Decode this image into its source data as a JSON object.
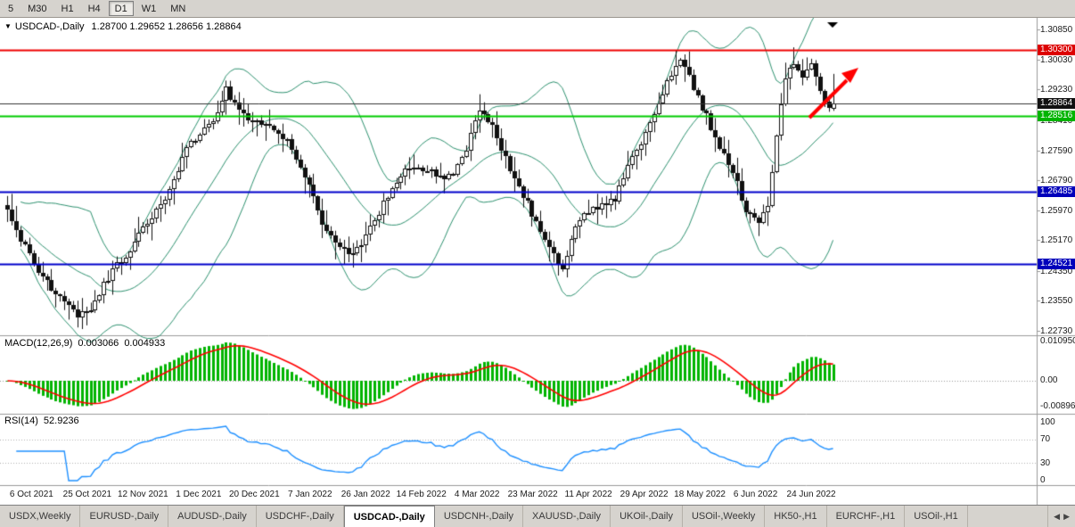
{
  "toolbar": {
    "timeframes": [
      "5",
      "M30",
      "H1",
      "H4",
      "D1",
      "W1",
      "MN"
    ],
    "active_timeframe": "D1"
  },
  "chart": {
    "expand_icon": "▼",
    "shift_marker": "▼",
    "symbol_label": "USDCAD-,Daily",
    "ohlc": "1.28700 1.29652 1.28656 1.28864",
    "y_axis": {
      "ticks": [
        "1.30850",
        "1.30030",
        "1.29230",
        "1.28410",
        "1.27590",
        "1.26790",
        "1.25970",
        "1.25170",
        "1.24350",
        "1.23550",
        "1.22730"
      ]
    },
    "x_axis": {
      "labels": [
        "6 Oct 2021",
        "25 Oct 2021",
        "12 Nov 2021",
        "1 Dec 2021",
        "20 Dec 2021",
        "7 Jan 2022",
        "26 Jan 2022",
        "14 Feb 2022",
        "4 Mar 2022",
        "23 Mar 2022",
        "11 Apr 2022",
        "29 Apr 2022",
        "18 May 2022",
        "6 Jun 2022",
        "24 Jun 2022"
      ]
    },
    "price_lines": [
      {
        "label": "1.30300",
        "price": 1.303,
        "color": "#ee0000",
        "badge": "#dd0000",
        "width": 2
      },
      {
        "label": "1.28864",
        "price": 1.28864,
        "color": "#333333",
        "badge": "#111111",
        "width": 1
      },
      {
        "label": "1.28516",
        "price": 1.28516,
        "color": "#00cc00",
        "badge": "#00b400",
        "width": 2
      },
      {
        "label": "1.26485",
        "price": 1.26485,
        "color": "#0000cc",
        "badge": "#0000bb",
        "width": 2
      },
      {
        "label": "1.24521",
        "price": 1.24521,
        "color": "#0000cc",
        "badge": "#0000bb",
        "width": 2
      }
    ],
    "trend_arrow_color": "#ff0000"
  },
  "chart_data": {
    "type": "candlestick",
    "title": "USDCAD-,Daily",
    "bars": 190,
    "y_range": [
      1.2261,
      1.3112
    ],
    "last_bar": {
      "open": 1.287,
      "high": 1.29652,
      "low": 1.28656,
      "close": 1.28864
    },
    "price_anchors": [
      [
        0,
        1.26
      ],
      [
        3,
        1.252
      ],
      [
        6,
        1.245
      ],
      [
        9,
        1.24
      ],
      [
        12,
        1.237
      ],
      [
        16,
        1.231
      ],
      [
        19,
        1.233
      ],
      [
        22,
        1.2395
      ],
      [
        25,
        1.245
      ],
      [
        28,
        1.249
      ],
      [
        31,
        1.255
      ],
      [
        35,
        1.261
      ],
      [
        38,
        1.2685
      ],
      [
        41,
        1.277
      ],
      [
        44,
        1.2805
      ],
      [
        47,
        1.284
      ],
      [
        50,
        1.292
      ],
      [
        53,
        1.287
      ],
      [
        56,
        1.283
      ],
      [
        59,
        1.284
      ],
      [
        62,
        1.2805
      ],
      [
        65,
        1.277
      ],
      [
        68,
        1.269
      ],
      [
        72,
        1.256
      ],
      [
        75,
        1.252
      ],
      [
        78,
        1.248
      ],
      [
        81,
        1.25
      ],
      [
        84,
        1.2575
      ],
      [
        87,
        1.2635
      ],
      [
        90,
        1.2695
      ],
      [
        93,
        1.272
      ],
      [
        96,
        1.2705
      ],
      [
        99,
        1.2685
      ],
      [
        102,
        1.2705
      ],
      [
        105,
        1.2765
      ],
      [
        108,
        1.287
      ],
      [
        111,
        1.283
      ],
      [
        113,
        1.2765
      ],
      [
        116,
        1.2685
      ],
      [
        119,
        1.2615
      ],
      [
        122,
        1.2535
      ],
      [
        125,
        1.2485
      ],
      [
        127,
        1.244
      ],
      [
        130,
        1.2555
      ],
      [
        133,
        1.2595
      ],
      [
        136,
        1.2615
      ],
      [
        139,
        1.2625
      ],
      [
        142,
        1.272
      ],
      [
        145,
        1.278
      ],
      [
        148,
        1.285
      ],
      [
        151,
        1.2945
      ],
      [
        154,
        1.301
      ],
      [
        157,
        1.2925
      ],
      [
        160,
        1.285
      ],
      [
        163,
        1.2765
      ],
      [
        166,
        1.2705
      ],
      [
        169,
        1.2595
      ],
      [
        172,
        1.256
      ],
      [
        174,
        1.2615
      ],
      [
        176,
        1.2805
      ],
      [
        178,
        1.2945
      ],
      [
        180,
        1.3
      ],
      [
        182,
        1.295
      ],
      [
        184,
        1.2985
      ],
      [
        186,
        1.2915
      ],
      [
        188,
        1.2875
      ],
      [
        189,
        1.2886
      ]
    ],
    "indicators": {
      "bollinger": {
        "name": "Bollinger Bands",
        "period": 20,
        "deviation": 2,
        "color": "#2e9270"
      },
      "macd": {
        "label": "MACD(12,26,9)",
        "value_main": "0.003066",
        "value_signal": "0.004933",
        "histogram_color": "#00b400",
        "signal_color": "#ff0000",
        "axis_labels": [
          "0.010950",
          "0.00",
          "-0.008960"
        ]
      },
      "rsi": {
        "label": "RSI(14)",
        "value": "52.9236",
        "color": "#1e90ff",
        "axis_labels": [
          "100",
          "70",
          "30",
          "0"
        ],
        "levels": [
          70,
          30
        ]
      }
    }
  },
  "tabbar": {
    "scroll_left_icon": "◀",
    "scroll_right_icon": "▶",
    "tabs": [
      {
        "label": "USDX,Weekly",
        "active": false
      },
      {
        "label": "EURUSD-,Daily",
        "active": false
      },
      {
        "label": "AUDUSD-,Daily",
        "active": false
      },
      {
        "label": "USDCHF-,Daily",
        "active": false
      },
      {
        "label": "USDCAD-,Daily",
        "active": true
      },
      {
        "label": "USDCNH-,Daily",
        "active": false
      },
      {
        "label": "XAUUSD-,Daily",
        "active": false
      },
      {
        "label": "UKOil-,Daily",
        "active": false
      },
      {
        "label": "USOil-,Weekly",
        "active": false
      },
      {
        "label": "HK50-,H1",
        "active": false
      },
      {
        "label": "EURCHF-,H1",
        "active": false
      },
      {
        "label": "USOil-,H1",
        "active": false
      }
    ]
  }
}
